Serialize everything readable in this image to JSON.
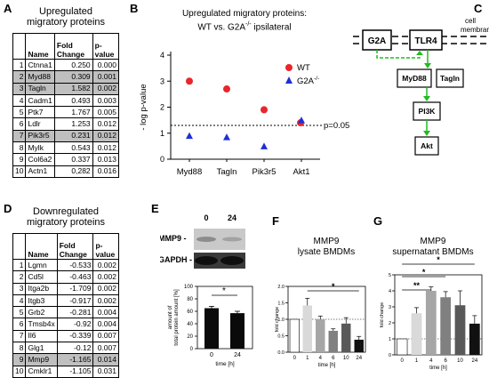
{
  "panels": {
    "A": "A",
    "B": "B",
    "C": "C",
    "D": "D",
    "E": "E",
    "F": "F",
    "G": "G"
  },
  "tableA": {
    "title1": "Upregulated",
    "title2": "migratory proteins",
    "headers": [
      "Name",
      "Fold Change",
      "p-value"
    ],
    "rows": [
      {
        "i": "1",
        "name": "Ctnna1",
        "fc": "0.250",
        "p": "0.000",
        "hl": false
      },
      {
        "i": "2",
        "name": "Myd88",
        "fc": "0.309",
        "p": "0.001",
        "hl": true
      },
      {
        "i": "3",
        "name": "Tagln",
        "fc": "1.582",
        "p": "0.002",
        "hl": true
      },
      {
        "i": "4",
        "name": "Cadm1",
        "fc": "0.493",
        "p": "0.003",
        "hl": false
      },
      {
        "i": "5",
        "name": "Ptk7",
        "fc": "1.767",
        "p": "0.005",
        "hl": false
      },
      {
        "i": "6",
        "name": "Ldlr",
        "fc": "1.253",
        "p": "0.012",
        "hl": false
      },
      {
        "i": "7",
        "name": "Pik3r5",
        "fc": "0.231",
        "p": "0.012",
        "hl": true
      },
      {
        "i": "8",
        "name": "Mylk",
        "fc": "0.543",
        "p": "0.012",
        "hl": false
      },
      {
        "i": "9",
        "name": "Col6a2",
        "fc": "0.337",
        "p": "0.013",
        "hl": false
      },
      {
        "i": "10",
        "name": "Actn1",
        "fc": "0,282",
        "p": "0.016",
        "hl": false
      }
    ]
  },
  "tableD": {
    "title1": "Downregulated",
    "title2": "migratory proteins",
    "headers": [
      "Name",
      "Fold Change",
      "p-value"
    ],
    "rows": [
      {
        "i": "1",
        "name": "Lgmn",
        "fc": "-0.533",
        "p": "0.002",
        "hl": false
      },
      {
        "i": "2",
        "name": "Cd5l",
        "fc": "-0.463",
        "p": "0.002",
        "hl": false
      },
      {
        "i": "3",
        "name": "Itga2b",
        "fc": "-1.709",
        "p": "0.002",
        "hl": false
      },
      {
        "i": "4",
        "name": "Itgb3",
        "fc": "-0.917",
        "p": "0.002",
        "hl": false
      },
      {
        "i": "5",
        "name": "Grb2",
        "fc": "-0.281",
        "p": "0.004",
        "hl": false
      },
      {
        "i": "6",
        "name": "Tmsb4x",
        "fc": "-0.92",
        "p": "0.004",
        "hl": false
      },
      {
        "i": "7",
        "name": "Il6",
        "fc": "-0.339",
        "p": "0.007",
        "hl": false
      },
      {
        "i": "8",
        "name": "Glg1",
        "fc": "-0.12",
        "p": "0.007",
        "hl": false
      },
      {
        "i": "9",
        "name": "Mmp9",
        "fc": "-1.165",
        "p": "0.014",
        "hl": true
      },
      {
        "i": "10",
        "name": "Cmklr1",
        "fc": "-1.105",
        "p": "0.031",
        "hl": false
      }
    ]
  },
  "pathway": {
    "labels": {
      "g2a": "G2A",
      "tlr4": "TLR4",
      "myd88": "MyD88",
      "tagln": "Tagln",
      "pi3k": "PI3K",
      "akt": "Akt"
    },
    "membrane1": "cell",
    "membrane2": "membrane",
    "arrow_color": "#22bb22"
  },
  "chart_data": [
    {
      "id": "B",
      "type": "scatter",
      "title_line1": "Upregulated migratory proteins:",
      "title_line2_wt": "WT vs. G2A",
      "title_line2_sup": "-/-",
      "title_line2_end": " ipsilateral",
      "ylabel": "- log p-value",
      "ylim": [
        0,
        4
      ],
      "yticks": [
        "0",
        "1",
        "2",
        "3",
        "4"
      ],
      "categories": [
        "Myd88",
        "Tagln",
        "Pik3r5",
        "Akt1"
      ],
      "threshold": 1.3,
      "threshold_label": "p=0.05",
      "series": [
        {
          "name": "WT",
          "marker": "circle",
          "color": "#e8262b",
          "values": [
            3.0,
            2.7,
            1.9,
            1.4
          ]
        },
        {
          "name": "G2A",
          "name_sup": "-/-",
          "marker": "triangle",
          "color": "#1f2fd6",
          "values": [
            0.9,
            0.85,
            0.5,
            1.5
          ]
        }
      ]
    },
    {
      "id": "E",
      "type": "bar",
      "blot_times": [
        "0",
        "24"
      ],
      "blot_labels": [
        "MMP9 -",
        "GAPDH -"
      ],
      "ylabel1": "amount of",
      "ylabel2": "total protein amount [%]",
      "xlabel": "time [h]",
      "categories": [
        "0",
        "24"
      ],
      "values": [
        65,
        57
      ],
      "errors": [
        3,
        3
      ],
      "ylim": [
        0,
        100
      ],
      "yticks": [
        "0",
        "20",
        "40",
        "60",
        "80",
        "100"
      ],
      "significance": "*"
    },
    {
      "id": "F",
      "type": "bar",
      "title_line1": "MMP9",
      "title_line2": "lysate BMDMs",
      "ylabel": "fold change",
      "xlabel": "time [h]",
      "categories": [
        "0",
        "1",
        "4",
        "6",
        "10",
        "24"
      ],
      "values": [
        1.0,
        1.42,
        1.0,
        0.65,
        0.87,
        0.38
      ],
      "errors": [
        0,
        0.22,
        0.1,
        0.06,
        0.18,
        0.1
      ],
      "ylim": [
        0.0,
        2.0
      ],
      "yticks": [
        "0.0",
        "0.5",
        "1.0",
        "1.5",
        "2.0"
      ],
      "reference": 1.0,
      "colors": [
        "#ffffff",
        "#d9d9d9",
        "#a6a6a6",
        "#808080",
        "#595959",
        "#111111"
      ],
      "significance": [
        {
          "from": "1",
          "to": "24",
          "label": "*"
        }
      ]
    },
    {
      "id": "G",
      "type": "bar",
      "title_line1": "MMP9",
      "title_line2": "supernatant BMDMs",
      "ylabel": "fold change",
      "xlabel": "time [h]",
      "categories": [
        "0",
        "1",
        "4",
        "6",
        "10",
        "24"
      ],
      "values": [
        1.0,
        2.6,
        4.0,
        3.6,
        3.1,
        1.95
      ],
      "errors": [
        0,
        0.35,
        0.25,
        0.35,
        0.9,
        0.5
      ],
      "ylim": [
        0,
        5
      ],
      "yticks": [
        "0",
        "1",
        "2",
        "3",
        "4",
        "5"
      ],
      "reference": 1.0,
      "colors": [
        "#ffffff",
        "#d9d9d9",
        "#a6a6a6",
        "#808080",
        "#595959",
        "#111111"
      ],
      "significance": [
        {
          "from": "0",
          "to": "24",
          "label": "*"
        },
        {
          "from": "0",
          "to": "6",
          "label": "*"
        },
        {
          "from": "0",
          "to": "4",
          "label": "**"
        }
      ]
    }
  ]
}
